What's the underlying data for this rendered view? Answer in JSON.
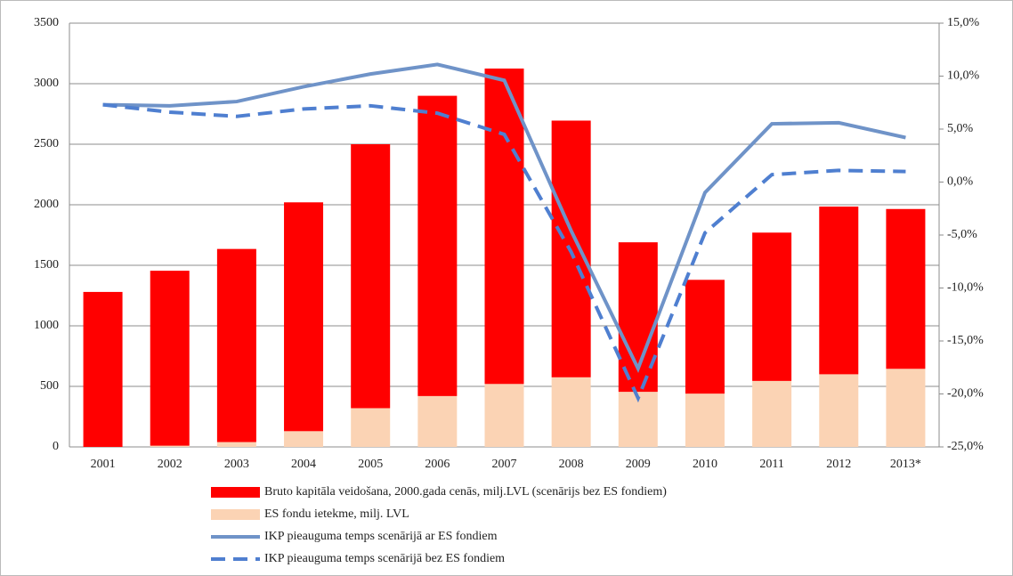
{
  "chart_data": {
    "type": "bar",
    "categories": [
      "2001",
      "2002",
      "2003",
      "2004",
      "2005",
      "2006",
      "2007",
      "2008",
      "2009",
      "2010",
      "2011",
      "2012",
      "2013*"
    ],
    "series": [
      {
        "name": "ES fondu ietekme, milj. LVL",
        "color": "#fbd3b4",
        "values": [
          0,
          10,
          40,
          130,
          320,
          420,
          520,
          575,
          455,
          440,
          545,
          600,
          645
        ]
      },
      {
        "name": "Bruto kapitāla veidošana, 2000.gada cenās, milj.LVL (scenārijs bez ES fondiem)",
        "color": "#ff0000",
        "values": [
          1280,
          1445,
          1595,
          1890,
          2180,
          2480,
          2605,
          2120,
          1235,
          940,
          1225,
          1385,
          1320
        ]
      },
      {
        "name": "IKP pieauguma temps scenārijā ar ES fondiem",
        "color": "#6f93c8",
        "type": "line",
        "axis": "y2",
        "values": [
          7.3,
          7.2,
          7.6,
          9.0,
          10.2,
          11.1,
          9.6,
          -4.6,
          -17.6,
          -1.0,
          5.5,
          5.6,
          4.2
        ]
      },
      {
        "name": "IKP pieauguma temps scenārijā bez ES fondiem",
        "color": "#4f7fd0",
        "type": "line",
        "dashed": true,
        "axis": "y2",
        "values": [
          7.3,
          6.6,
          6.2,
          6.9,
          7.2,
          6.5,
          4.5,
          -6.6,
          -20.4,
          -4.8,
          0.7,
          1.1,
          1.0
        ]
      }
    ],
    "legend_order": [
      1,
      0,
      2,
      3
    ],
    "stacked": true,
    "ylim": [
      0,
      3500
    ],
    "yticks": [
      0,
      500,
      1000,
      1500,
      2000,
      2500,
      3000,
      3500
    ],
    "y2lim": [
      -25,
      15
    ],
    "y2ticks": [
      {
        "value": -25,
        "label": "-25,0%"
      },
      {
        "value": -20,
        "label": "-20,0%"
      },
      {
        "value": -15,
        "label": "-15,0%"
      },
      {
        "value": -10,
        "label": "-10,0%"
      },
      {
        "value": -5,
        "label": "-5,0%"
      },
      {
        "value": 0,
        "label": "0,0%"
      },
      {
        "value": 5,
        "label": "5,0%"
      },
      {
        "value": 10,
        "label": "10,0%"
      },
      {
        "value": 15,
        "label": "15,0%"
      }
    ],
    "grid": true
  }
}
